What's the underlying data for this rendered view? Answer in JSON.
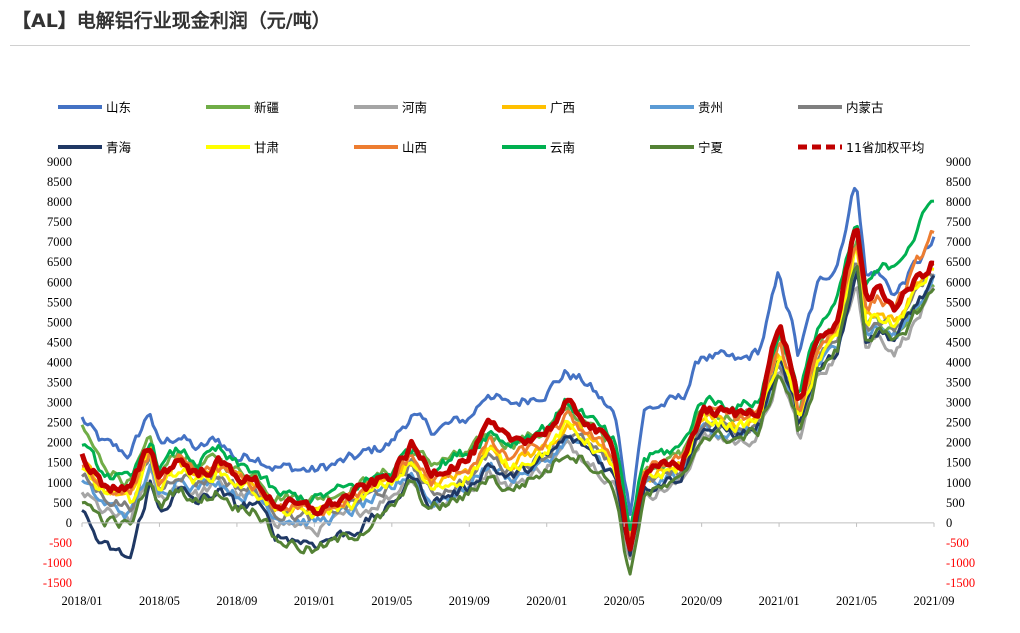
{
  "page": {
    "title": "【AL】电解铝行业现金利润（元/吨）"
  },
  "chart_data": {
    "type": "line",
    "title": "【AL】电解铝行业现金利润（元/吨）",
    "ylim": [
      -1500,
      9000
    ],
    "y_ticks": [
      "9000",
      "8500",
      "8000",
      "7500",
      "7000",
      "6500",
      "6000",
      "5500",
      "5000",
      "4500",
      "4000",
      "3500",
      "3000",
      "2500",
      "2000",
      "1500",
      "1000",
      "500",
      "0",
      "-500",
      "-1000",
      "-1500"
    ],
    "negative_tick_color": "#ff0000",
    "x_ticks": [
      "2018/01",
      "2018/05",
      "2018/09",
      "2019/01",
      "2019/05",
      "2019/09",
      "2020/01",
      "2020/05",
      "2020/09",
      "2021/01",
      "2021/05",
      "2021/09"
    ],
    "x_range_months": [
      0,
      44
    ],
    "grid": false,
    "legend_position": "top",
    "anchors_x_month": [
      0,
      1,
      2.5,
      3.5,
      4,
      5,
      6,
      7,
      8,
      9,
      10,
      12,
      14,
      16,
      17,
      18,
      20,
      21,
      22,
      24,
      25,
      26,
      27.5,
      28.3,
      29,
      31,
      32,
      34,
      35,
      36,
      36.8,
      37,
      38,
      39,
      40,
      40.5,
      41,
      42,
      43,
      44
    ],
    "series": [
      {
        "name": "山东",
        "color": "#4472c4",
        "dashed": false,
        "width": 3,
        "values": [
          2600,
          2000,
          1700,
          2800,
          1900,
          2200,
          1800,
          2100,
          1600,
          1700,
          1400,
          1300,
          1600,
          2000,
          2700,
          2300,
          2600,
          3300,
          2900,
          3300,
          3750,
          3500,
          2700,
          300,
          2800,
          3100,
          4200,
          4000,
          4300,
          6200,
          4700,
          4100,
          5900,
          6500,
          8600,
          6100,
          6300,
          5700,
          6400,
          7000
        ]
      },
      {
        "name": "新疆",
        "color": "#70ad47",
        "dashed": false,
        "width": 3,
        "values": [
          2400,
          1500,
          1000,
          2000,
          1200,
          1800,
          1400,
          1600,
          1300,
          1200,
          700,
          600,
          900,
          1300,
          1800,
          1500,
          1700,
          2200,
          2000,
          2300,
          2800,
          2500,
          1900,
          -300,
          1400,
          1700,
          2800,
          2600,
          2800,
          4700,
          3400,
          2600,
          4500,
          5000,
          7200,
          5000,
          5100,
          4600,
          5200,
          5800
        ]
      },
      {
        "name": "河南",
        "color": "#a5a5a5",
        "dashed": false,
        "width": 3,
        "values": [
          800,
          300,
          0,
          1300,
          500,
          1000,
          700,
          1000,
          700,
          600,
          100,
          -200,
          200,
          700,
          1200,
          400,
          800,
          1400,
          900,
          1400,
          1900,
          1700,
          1000,
          -900,
          700,
          1000,
          2200,
          2000,
          2200,
          3700,
          2700,
          2000,
          3700,
          4200,
          6200,
          4400,
          4700,
          4300,
          5000,
          5700
        ]
      },
      {
        "name": "广西",
        "color": "#ffc000",
        "dashed": false,
        "width": 3,
        "values": [
          1500,
          900,
          600,
          1800,
          1000,
          1500,
          1100,
          1500,
          1200,
          900,
          400,
          300,
          600,
          1100,
          1600,
          900,
          1300,
          1900,
          1500,
          1900,
          2400,
          2200,
          1500,
          -500,
          1100,
          1400,
          2600,
          2400,
          2600,
          4200,
          3200,
          2400,
          4200,
          4700,
          7000,
          5200,
          5300,
          5000,
          5800,
          6500
        ]
      },
      {
        "name": "贵州",
        "color": "#5b9bd5",
        "dashed": false,
        "width": 3,
        "values": [
          1000,
          500,
          200,
          1400,
          600,
          1200,
          900,
          1100,
          700,
          700,
          200,
          0,
          300,
          800,
          1300,
          500,
          900,
          1500,
          1100,
          1500,
          2100,
          1900,
          1200,
          -700,
          900,
          1200,
          2400,
          2200,
          2400,
          3900,
          2900,
          2200,
          3900,
          4400,
          6600,
          4700,
          4900,
          4600,
          5400,
          6100
        ]
      },
      {
        "name": "内蒙古",
        "color": "#7f7f7f",
        "dashed": false,
        "width": 3,
        "values": [
          1200,
          700,
          400,
          1600,
          800,
          1300,
          1000,
          1200,
          900,
          800,
          300,
          100,
          500,
          900,
          1500,
          700,
          1100,
          1700,
          1300,
          1700,
          2300,
          2000,
          1300,
          -600,
          1000,
          1300,
          2500,
          2300,
          2500,
          4100,
          3100,
          2300,
          4100,
          4600,
          6800,
          4900,
          5100,
          4800,
          5600,
          6300
        ]
      },
      {
        "name": "青海",
        "color": "#1f3864",
        "dashed": false,
        "width": 3,
        "values": [
          300,
          -600,
          -900,
          1000,
          300,
          800,
          500,
          800,
          400,
          500,
          -300,
          -500,
          -200,
          400,
          1200,
          500,
          900,
          1500,
          1100,
          1600,
          2100,
          1900,
          1200,
          -700,
          900,
          1200,
          2400,
          2200,
          2400,
          4000,
          3000,
          2200,
          3900,
          4300,
          6300,
          4600,
          4800,
          4600,
          5400,
          6000
        ]
      },
      {
        "name": "甘肃",
        "color": "#ffff00",
        "dashed": false,
        "width": 3,
        "values": [
          1300,
          800,
          500,
          1700,
          900,
          1400,
          1000,
          1300,
          1000,
          800,
          300,
          200,
          500,
          1000,
          1500,
          800,
          1200,
          1800,
          1400,
          1800,
          2400,
          2100,
          1400,
          -500,
          1100,
          1400,
          2600,
          2400,
          2600,
          4200,
          3200,
          2400,
          4100,
          4600,
          6900,
          5000,
          5200,
          4900,
          5700,
          6400
        ]
      },
      {
        "name": "山西",
        "color": "#ed7d31",
        "dashed": false,
        "width": 3,
        "values": [
          1400,
          900,
          600,
          1800,
          1000,
          1500,
          1100,
          1400,
          1100,
          900,
          400,
          300,
          700,
          1100,
          1700,
          1000,
          1400,
          2000,
          1600,
          2000,
          2600,
          2300,
          1600,
          -400,
          1300,
          1600,
          2800,
          2600,
          2800,
          4400,
          3400,
          2700,
          4400,
          4900,
          7200,
          5300,
          5600,
          5400,
          6300,
          7300
        ]
      },
      {
        "name": "云南",
        "color": "#00b050",
        "dashed": false,
        "width": 3,
        "values": [
          1900,
          1300,
          1000,
          2100,
          1400,
          1800,
          1500,
          1800,
          1400,
          1300,
          700,
          600,
          900,
          1300,
          1900,
          1400,
          1800,
          2300,
          2000,
          2400,
          3000,
          2700,
          2000,
          -200,
          1600,
          1900,
          3100,
          2900,
          3100,
          4800,
          3800,
          3100,
          4900,
          5500,
          7500,
          5800,
          6200,
          6500,
          7200,
          8100
        ]
      },
      {
        "name": "宁夏",
        "color": "#548235",
        "dashed": false,
        "width": 3,
        "values": [
          600,
          100,
          -100,
          1100,
          400,
          900,
          500,
          800,
          400,
          400,
          -400,
          -700,
          -300,
          300,
          1000,
          300,
          700,
          1200,
          800,
          1300,
          1800,
          1600,
          900,
          -1400,
          700,
          1000,
          2200,
          2100,
          2300,
          3800,
          2800,
          2000,
          3800,
          4300,
          6600,
          4600,
          4800,
          4400,
          5200,
          5800
        ]
      },
      {
        "name": "11省加权平均",
        "color": "#c00000",
        "dashed": true,
        "width": 5,
        "values": [
          1700,
          1000,
          800,
          1900,
          1200,
          1600,
          1200,
          1500,
          1200,
          1000,
          500,
          300,
          700,
          1200,
          1900,
          1300,
          1600,
          2400,
          2000,
          2300,
          2900,
          2600,
          1800,
          -600,
          1200,
          1500,
          2800,
          2700,
          2900,
          5000,
          3600,
          2900,
          4500,
          5000,
          7600,
          5600,
          5800,
          5400,
          6000,
          6500
        ]
      }
    ]
  }
}
